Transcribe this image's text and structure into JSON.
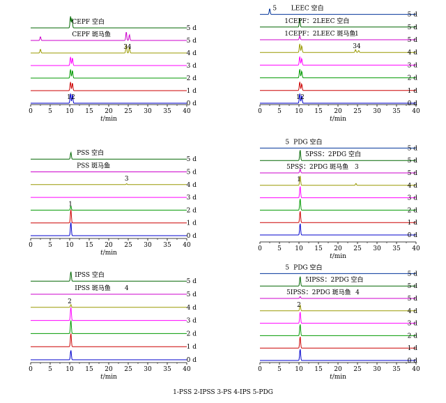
{
  "legend_note": "1-PSS   2-IPSS   3-PS   4-IPS   5-PDG",
  "chart_data": [
    {
      "type": "line",
      "xlabel_italic": "t",
      "xlabel_unit": "/min",
      "xlim": [
        0,
        40
      ],
      "xticks": [
        "0",
        "5",
        "10",
        "15",
        "20",
        "25",
        "30",
        "35",
        "40"
      ],
      "series": [
        {
          "label": "0 d",
          "color": "#0000cc",
          "peaks": [
            [
              10.2,
              1.0
            ],
            [
              10.7,
              0.9
            ]
          ]
        },
        {
          "label": "1 d",
          "color": "#cc0000",
          "peaks": [
            [
              10.2,
              0.9
            ],
            [
              10.7,
              0.8
            ]
          ]
        },
        {
          "label": "2 d",
          "color": "#009900",
          "peaks": [
            [
              10.2,
              0.9
            ],
            [
              10.7,
              0.8
            ]
          ]
        },
        {
          "label": "3 d",
          "color": "#ff00ff",
          "peaks": [
            [
              10.2,
              0.9
            ],
            [
              10.7,
              0.8
            ]
          ]
        },
        {
          "label": "4 d",
          "color": "#999900",
          "peaks": [
            [
              2.5,
              0.4
            ],
            [
              24.5,
              0.9
            ],
            [
              25.3,
              0.6
            ]
          ]
        },
        {
          "label": "5 d",
          "color": "#cc00cc",
          "peaks": [
            [
              2.5,
              0.4
            ],
            [
              24.5,
              0.9
            ],
            [
              25.3,
              0.6
            ]
          ]
        },
        {
          "label": "5 d",
          "color": "#006600",
          "peaks": [
            [
              10.2,
              1.2
            ],
            [
              10.6,
              1.0
            ]
          ]
        }
      ],
      "annotations": [
        {
          "text": "CEPF 空白",
          "x": 10.6,
          "trace": 6
        },
        {
          "text": "CEPF 斑马鱼",
          "x": 10.6,
          "trace": 5
        },
        {
          "text": "3",
          "x": 24.3,
          "trace": 4
        },
        {
          "text": "4",
          "x": 25.3,
          "trace": 4
        },
        {
          "text": "1",
          "x": 9.8,
          "trace": 0
        },
        {
          "text": "2",
          "x": 10.9,
          "trace": 0
        }
      ]
    },
    {
      "type": "line",
      "xlabel_italic": "t",
      "xlabel_unit": "/min",
      "xlim": [
        0,
        40
      ],
      "xticks": [
        "0",
        "5",
        "10",
        "15",
        "20",
        "25",
        "30",
        "35",
        "40"
      ],
      "series": [
        {
          "label": "0 d",
          "color": "#0000cc",
          "peaks": [
            [
              10.2,
              1.0
            ],
            [
              10.7,
              0.8
            ]
          ]
        },
        {
          "label": "1 d",
          "color": "#cc0000",
          "peaks": [
            [
              10.2,
              0.9
            ],
            [
              10.7,
              0.7
            ]
          ]
        },
        {
          "label": "2 d",
          "color": "#009900",
          "peaks": [
            [
              10.2,
              0.9
            ],
            [
              10.7,
              0.7
            ]
          ]
        },
        {
          "label": "3 d",
          "color": "#ff00ff",
          "peaks": [
            [
              10.2,
              0.9
            ],
            [
              10.7,
              0.7
            ]
          ]
        },
        {
          "label": "4 d",
          "color": "#999900",
          "peaks": [
            [
              10.2,
              0.9
            ],
            [
              10.7,
              0.7
            ],
            [
              24.5,
              0.3
            ],
            [
              25.3,
              0.2
            ]
          ]
        },
        {
          "label": "5 d",
          "color": "#cc00cc",
          "peaks": [
            [
              10.2,
              0.4
            ]
          ]
        },
        {
          "label": "5 d",
          "color": "#006600",
          "peaks": [
            [
              10.2,
              0.9
            ]
          ]
        },
        {
          "label": "5 d",
          "color": "#003399",
          "peaks": [
            [
              2.5,
              0.6
            ]
          ]
        }
      ],
      "annotations": [
        {
          "text": "5",
          "x": 3.8,
          "trace": 7
        },
        {
          "text": "LEEC 空白",
          "x": 8.0,
          "trace": 7
        },
        {
          "text": "1CEPF：2LEEC 空白",
          "x": 6.3,
          "trace": 6
        },
        {
          "text": "1CEPF：2LEEC 斑马鱼",
          "x": 6.3,
          "trace": 5
        },
        {
          "text": "1",
          "x": 24.8,
          "trace": 5
        },
        {
          "text": "3",
          "x": 24.3,
          "trace": 4
        },
        {
          "text": "4",
          "x": 25.3,
          "trace": 4
        },
        {
          "text": "1",
          "x": 9.8,
          "trace": 0
        },
        {
          "text": "2",
          "x": 10.9,
          "trace": 0
        }
      ]
    },
    {
      "type": "line",
      "xlabel_italic": "t",
      "xlabel_unit": "/min",
      "xlim": [
        0,
        40
      ],
      "xticks": [
        "0",
        "5",
        "10",
        "15",
        "20",
        "25",
        "30",
        "35",
        "40"
      ],
      "series": [
        {
          "label": "0 d",
          "color": "#0000cc",
          "peaks": [
            [
              10.3,
              1.4
            ]
          ]
        },
        {
          "label": "1 d",
          "color": "#cc0000",
          "peaks": [
            [
              10.3,
              1.4
            ]
          ]
        },
        {
          "label": "2 d",
          "color": "#009900",
          "peaks": [
            [
              10.3,
              0.4
            ]
          ]
        },
        {
          "label": "3 d",
          "color": "#ff00ff",
          "peaks": []
        },
        {
          "label": "4 d",
          "color": "#999900",
          "peaks": [
            [
              24.6,
              0.1
            ]
          ]
        },
        {
          "label": "5 d",
          "color": "#cc00cc",
          "peaks": []
        },
        {
          "label": "5 d",
          "color": "#006600",
          "peaks": [
            [
              10.3,
              0.7
            ]
          ]
        }
      ],
      "annotations": [
        {
          "text": "PSS 空白",
          "x": 11.8,
          "trace": 6
        },
        {
          "text": "PSS 斑马鱼",
          "x": 11.8,
          "trace": 5
        },
        {
          "text": "3",
          "x": 24.6,
          "trace": 4
        },
        {
          "text": "1",
          "x": 10.2,
          "trace": 2
        }
      ]
    },
    {
      "type": "line",
      "xlabel_italic": "t",
      "xlabel_unit": "/min",
      "xlim": [
        0,
        40
      ],
      "xticks": [
        "0",
        "5",
        "10",
        "15",
        "20",
        "25",
        "30",
        "35",
        "40"
      ],
      "series": [
        {
          "label": "0 d",
          "color": "#0000cc",
          "peaks": [
            [
              10.3,
              1.2
            ]
          ]
        },
        {
          "label": "1 d",
          "color": "#cc0000",
          "peaks": [
            [
              10.3,
              1.2
            ]
          ]
        },
        {
          "label": "2 d",
          "color": "#009900",
          "peaks": [
            [
              10.3,
              1.2
            ]
          ]
        },
        {
          "label": "3 d",
          "color": "#ff00ff",
          "peaks": [
            [
              10.3,
              1.2
            ]
          ]
        },
        {
          "label": "4 d",
          "color": "#999900",
          "peaks": [
            [
              10.3,
              1.0
            ],
            [
              24.6,
              0.2
            ]
          ]
        },
        {
          "label": "5 d",
          "color": "#cc00cc",
          "peaks": [
            [
              10.3,
              0.4
            ]
          ]
        },
        {
          "label": "5 d",
          "color": "#006600",
          "peaks": [
            [
              10.3,
              1.1
            ]
          ]
        },
        {
          "label": "5 d",
          "color": "#003399",
          "peaks": []
        }
      ],
      "annotations": [
        {
          "text": "5",
          "x": 7.0,
          "trace": 7
        },
        {
          "text": "PDG 空白",
          "x": 8.6,
          "trace": 7
        },
        {
          "text": "5PSS：2PDG 空白",
          "x": 11.6,
          "trace": 6
        },
        {
          "text": "5PSS：2PDG 斑马鱼",
          "x": 6.8,
          "trace": 5
        },
        {
          "text": "3",
          "x": 24.8,
          "trace": 5
        },
        {
          "text": "1",
          "x": 10.0,
          "trace": 4
        }
      ]
    },
    {
      "type": "line",
      "xlabel_italic": "t",
      "xlabel_unit": "/min",
      "xlim": [
        0,
        40
      ],
      "xticks": [
        "0",
        "5",
        "10",
        "15",
        "20",
        "25",
        "30",
        "35",
        "40"
      ],
      "series": [
        {
          "label": "0 d",
          "color": "#0000cc",
          "peaks": [
            [
              10.3,
              1.0
            ]
          ]
        },
        {
          "label": "1 d",
          "color": "#cc0000",
          "peaks": [
            [
              10.3,
              1.4
            ]
          ]
        },
        {
          "label": "2 d",
          "color": "#009900",
          "peaks": [
            [
              10.3,
              1.4
            ]
          ]
        },
        {
          "label": "3 d",
          "color": "#ff00ff",
          "peaks": [
            [
              10.3,
              1.4
            ]
          ]
        },
        {
          "label": "4 d",
          "color": "#999900",
          "peaks": [
            [
              10.3,
              0.3
            ]
          ]
        },
        {
          "label": "5 d",
          "color": "#cc00cc",
          "peaks": []
        },
        {
          "label": "5 d",
          "color": "#006600",
          "peaks": [
            [
              10.3,
              1.0
            ]
          ]
        }
      ],
      "annotations": [
        {
          "text": "IPSS 空白",
          "x": 11.3,
          "trace": 6
        },
        {
          "text": "IPSS 斑马鱼",
          "x": 11.3,
          "trace": 5
        },
        {
          "text": "4",
          "x": 24.6,
          "trace": 5
        },
        {
          "text": "2",
          "x": 10.0,
          "trace": 4
        }
      ]
    },
    {
      "type": "line",
      "xlabel_italic": "t",
      "xlabel_unit": "/min",
      "xlim": [
        0,
        40
      ],
      "xticks": [
        "0",
        "5",
        "10",
        "15",
        "20",
        "25",
        "30",
        "35",
        "40"
      ],
      "series": [
        {
          "label": "0 d",
          "color": "#0000cc",
          "peaks": [
            [
              10.3,
              1.2
            ]
          ]
        },
        {
          "label": "1 d",
          "color": "#cc0000",
          "peaks": [
            [
              10.3,
              1.2
            ]
          ]
        },
        {
          "label": "2 d",
          "color": "#009900",
          "peaks": [
            [
              10.3,
              1.2
            ]
          ]
        },
        {
          "label": "3 d",
          "color": "#ff00ff",
          "peaks": [
            [
              10.3,
              1.2
            ]
          ]
        },
        {
          "label": "4 d",
          "color": "#999900",
          "peaks": [
            [
              10.3,
              0.6
            ]
          ]
        },
        {
          "label": "5 d",
          "color": "#cc00cc",
          "peaks": [
            [
              10.3,
              0.2
            ]
          ]
        },
        {
          "label": "5 d",
          "color": "#006600",
          "peaks": [
            [
              10.3,
              1.0
            ]
          ]
        },
        {
          "label": "5 d",
          "color": "#003399",
          "peaks": []
        }
      ],
      "annotations": [
        {
          "text": "5",
          "x": 7.0,
          "trace": 7
        },
        {
          "text": "PDG 空白",
          "x": 8.6,
          "trace": 7
        },
        {
          "text": "5IPSS：2PDG 空白",
          "x": 11.6,
          "trace": 6
        },
        {
          "text": "5IPSS：2PDG 斑马鱼",
          "x": 6.8,
          "trace": 5
        },
        {
          "text": "4",
          "x": 25.0,
          "trace": 5
        },
        {
          "text": "2",
          "x": 10.0,
          "trace": 4
        }
      ]
    }
  ]
}
